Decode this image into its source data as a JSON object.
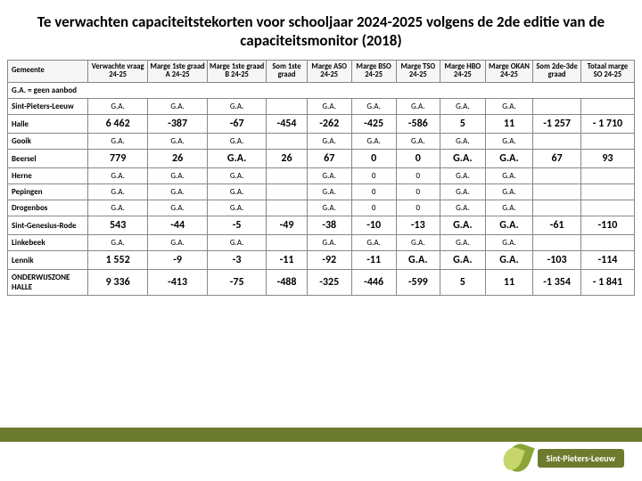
{
  "title": "Te verwachten capaciteitstekorten voor schooljaar 2024-2025 volgens de 2de editie van de capaciteitsmonitor (2018)",
  "footer_note": "G.A. = geen aanbod",
  "brand": "Sint-Pieters-Leeuw",
  "columns": [
    "Gemeente",
    "Verwachte vraag 24-25",
    "Marge 1ste graad A 24-25",
    "Marge 1ste graad B 24-25",
    "Som 1ste graad",
    "Marge ASO 24-25",
    "Marge BSO 24-25",
    "Marge TSO 24-25",
    "Marge HBO 24-25",
    "Marge OKAN 24-25",
    "Som 2de-3de graad",
    "Totaal marge SO 24-25"
  ],
  "rows": [
    {
      "name": "Sint-Pieters-Leeuw",
      "cells": [
        "G.A.",
        "G.A.",
        "G.A.",
        "",
        "G.A.",
        "G.A.",
        "G.A.",
        "G.A.",
        "G.A.",
        "",
        ""
      ]
    },
    {
      "name": "Halle",
      "cells": [
        "6 462",
        "-387",
        "-67",
        "-454",
        "-262",
        "-425",
        "-586",
        "5",
        "11",
        "-1 257",
        "- 1 710"
      ],
      "big": true
    },
    {
      "name": "Gooik",
      "cells": [
        "G.A.",
        "G.A.",
        "G.A.",
        "",
        "G.A.",
        "G.A.",
        "G.A.",
        "G.A.",
        "G.A.",
        "",
        ""
      ]
    },
    {
      "name": "Beersel",
      "cells": [
        "779",
        "26",
        "G.A.",
        "26",
        "67",
        "0",
        "0",
        "G.A.",
        "G.A.",
        "67",
        "93"
      ],
      "big": true
    },
    {
      "name": "Herne",
      "cells": [
        "G.A.",
        "G.A.",
        "G.A.",
        "",
        "G.A.",
        "0",
        "0",
        "G.A.",
        "G.A.",
        "",
        ""
      ]
    },
    {
      "name": "Pepingen",
      "cells": [
        "G.A.",
        "G.A.",
        "G.A.",
        "",
        "G.A.",
        "0",
        "0",
        "G.A.",
        "G.A.",
        "",
        ""
      ]
    },
    {
      "name": "Drogenbos",
      "cells": [
        "G.A.",
        "G.A.",
        "G.A.",
        "",
        "G.A.",
        "0",
        "0",
        "G.A.",
        "G.A.",
        "",
        ""
      ]
    },
    {
      "name": "Sint-Genesius-Rode",
      "cells": [
        "543",
        "-44",
        "-5",
        "-49",
        "-38",
        "-10",
        "-13",
        "G.A.",
        "G.A.",
        "-61",
        "-110"
      ],
      "big": true
    },
    {
      "name": "Linkebeek",
      "cells": [
        "G.A.",
        "G.A.",
        "G.A.",
        "",
        "G.A.",
        "G.A.",
        "G.A.",
        "G.A.",
        "G.A.",
        "",
        ""
      ]
    },
    {
      "name": "Lennik",
      "cells": [
        "1 552",
        "-9",
        "-3",
        "-11",
        "-92",
        "-11",
        "G.A.",
        "G.A.",
        "G.A.",
        "-103",
        "-114"
      ],
      "big": true
    },
    {
      "name": "ONDERWIJSZONE HALLE",
      "cells": [
        "9 336",
        "-413",
        "-75",
        "-488",
        "-325",
        "-446",
        "-599",
        "5",
        "11",
        "-1 354",
        "- 1 841"
      ],
      "big": true
    }
  ]
}
